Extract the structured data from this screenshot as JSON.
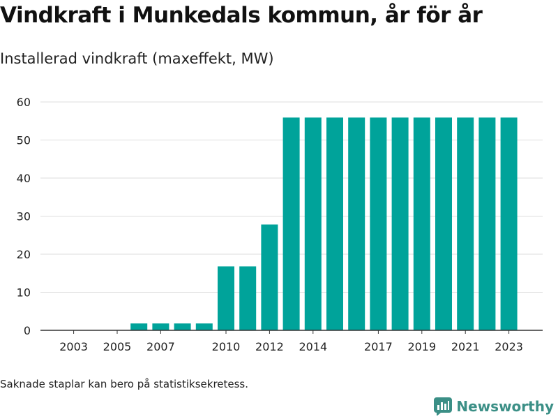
{
  "title": "Vindkraft i Munkedals kommun, år för år",
  "subtitle": "Installerad vindkraft (maxeffekt, MW)",
  "footnote": "Saknade staplar kan bero på statistiksekretess.",
  "brand": {
    "label": "Newsworthy",
    "icon": "newsworthy-logo-icon"
  },
  "colors": {
    "bar": "#00a39a",
    "grid": "#dddddd",
    "axis": "#333333",
    "brand": "#3b8f86"
  },
  "chart_data": {
    "type": "bar",
    "categories": [
      "2003",
      "2004",
      "2005",
      "2006",
      "2007",
      "2008",
      "2009",
      "2010",
      "2011",
      "2012",
      "2013",
      "2014",
      "2015",
      "2016",
      "2017",
      "2018",
      "2019",
      "2020",
      "2021",
      "2022",
      "2023"
    ],
    "values": [
      0,
      0,
      0,
      1.8,
      1.8,
      1.8,
      1.8,
      16.8,
      16.8,
      27.8,
      55.9,
      55.9,
      55.9,
      55.9,
      55.9,
      55.9,
      55.9,
      55.9,
      55.9,
      55.9,
      55.9
    ],
    "x_tick_labels": [
      "2003",
      "2005",
      "2007",
      "2010",
      "2012",
      "2014",
      "2017",
      "2019",
      "2021",
      "2023"
    ],
    "y_ticks": [
      0,
      10,
      20,
      30,
      40,
      50,
      60
    ],
    "ylim": [
      0,
      60
    ],
    "grid": true,
    "title": "Vindkraft i Munkedals kommun, år för år",
    "ylabel": "Installerad vindkraft (maxeffekt, MW)",
    "xlabel": ""
  }
}
